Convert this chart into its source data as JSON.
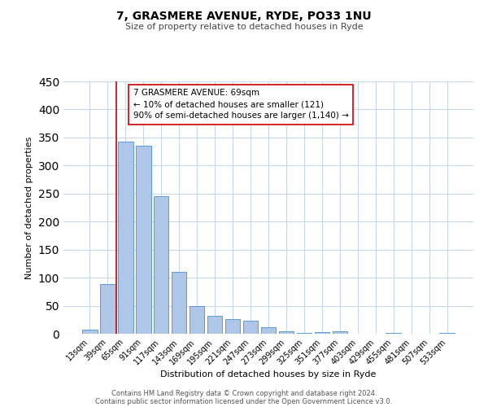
{
  "title": "7, GRASMERE AVENUE, RYDE, PO33 1NU",
  "subtitle": "Size of property relative to detached houses in Ryde",
  "xlabel": "Distribution of detached houses by size in Ryde",
  "ylabel": "Number of detached properties",
  "bar_labels": [
    "13sqm",
    "39sqm",
    "65sqm",
    "91sqm",
    "117sqm",
    "143sqm",
    "169sqm",
    "195sqm",
    "221sqm",
    "247sqm",
    "273sqm",
    "299sqm",
    "325sqm",
    "351sqm",
    "377sqm",
    "403sqm",
    "429sqm",
    "455sqm",
    "481sqm",
    "507sqm",
    "533sqm"
  ],
  "bar_values": [
    7,
    89,
    343,
    335,
    245,
    110,
    49,
    32,
    26,
    23,
    11,
    5,
    2,
    3,
    4,
    0,
    0,
    1,
    0,
    0,
    1
  ],
  "bar_color": "#aec6e8",
  "bar_edge_color": "#5b9bd5",
  "background_color": "#ffffff",
  "grid_color": "#c8d8ea",
  "vline_color": "#cc0000",
  "vline_x_index": 2,
  "annotation_text_line1": "7 GRASMERE AVENUE: 69sqm",
  "annotation_text_line2": "← 10% of detached houses are smaller (121)",
  "annotation_text_line3": "90% of semi-detached houses are larger (1,140) →",
  "annotation_box_color": "#ffffff",
  "annotation_box_edge": "#cc0000",
  "ylim": [
    0,
    450
  ],
  "yticks": [
    0,
    50,
    100,
    150,
    200,
    250,
    300,
    350,
    400,
    450
  ],
  "footer_line1": "Contains HM Land Registry data © Crown copyright and database right 2024.",
  "footer_line2": "Contains public sector information licensed under the Open Government Licence v3.0."
}
